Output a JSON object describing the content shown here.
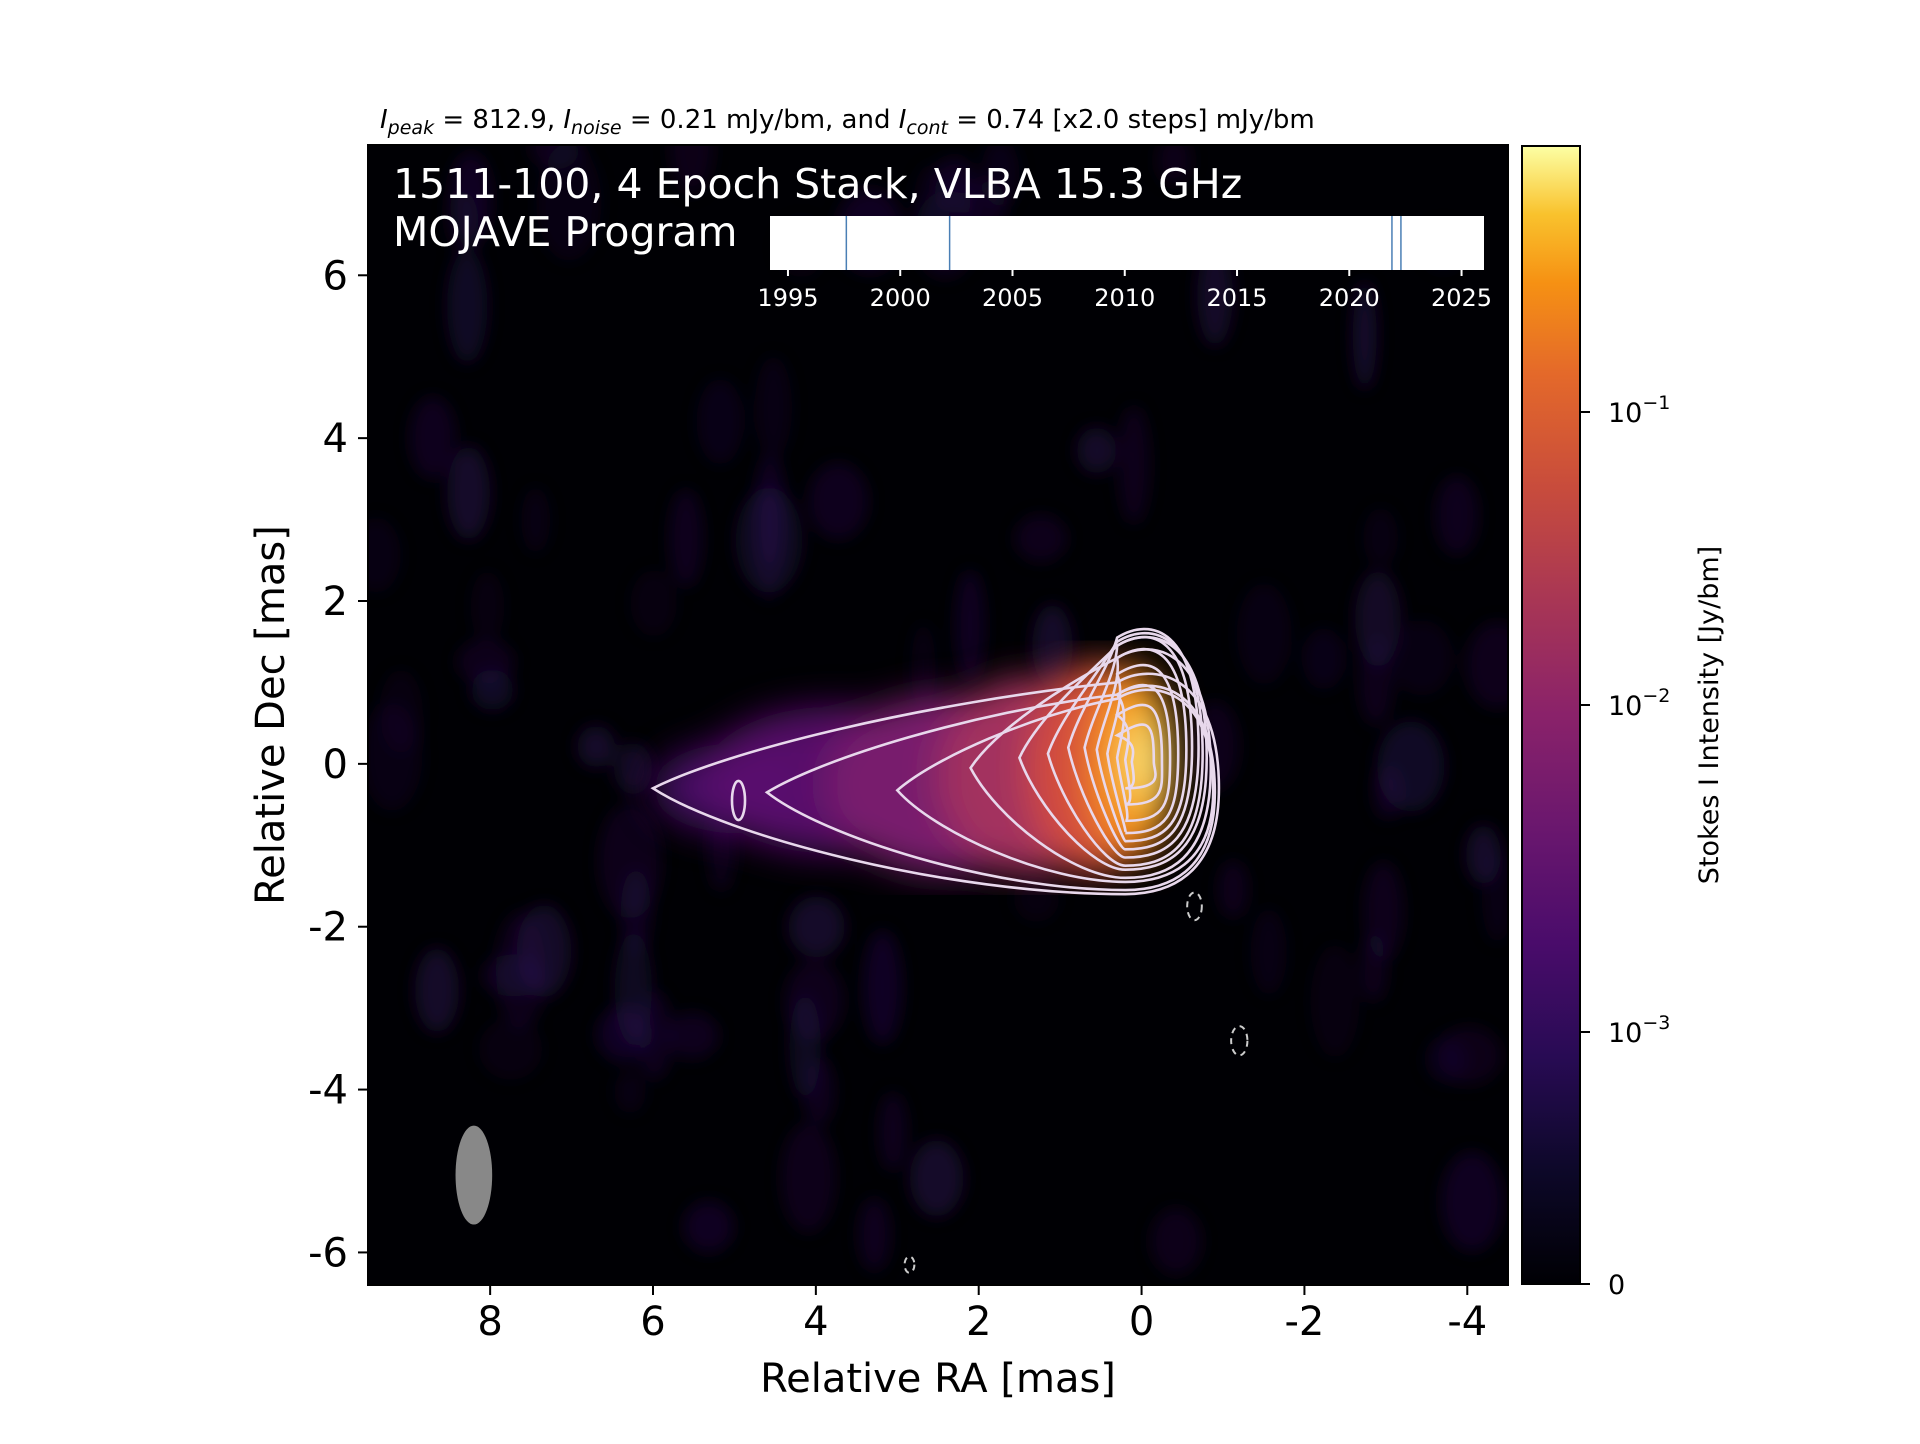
{
  "chart_data": {
    "type": "heatmap",
    "header": {
      "peak_sym": "I",
      "peak_sub": "peak",
      "peak_text": " = 812.9, ",
      "noise_sym": "I",
      "noise_sub": "noise",
      "noise_text": " = 0.21 mJy/bm, and ",
      "cont_sym": "I",
      "cont_sub": "cont",
      "cont_text": " = 0.74 [x2.0 steps] mJy/bm"
    },
    "overlay_title_line1": "1511-100, 4 Epoch Stack, VLBA 15.3 GHz",
    "overlay_title_line2": "MOJAVE Program",
    "xlabel": "Relative RA [mas]",
    "ylabel": "Relative Dec [mas]",
    "xlim": [
      9.5,
      -4.5
    ],
    "ylim": [
      -6.4,
      7.6
    ],
    "x_ticks": [
      8,
      6,
      4,
      2,
      0,
      -2,
      -4
    ],
    "y_ticks": [
      6,
      4,
      2,
      0,
      -2,
      -4,
      -6
    ],
    "x_tick_labels": [
      "8",
      "6",
      "4",
      "2",
      "0",
      "-2",
      "-4"
    ],
    "y_tick_labels": [
      "6",
      "4",
      "2",
      "0",
      "-2",
      "-4",
      "-6"
    ],
    "colorscale": "inferno",
    "colorbar": {
      "label": "Stokes I Intensity [Jy/bm]",
      "scale": "log",
      "ticks": [
        {
          "base": "10",
          "exp": "−1",
          "value": 0.1
        },
        {
          "base": "10",
          "exp": "−2",
          "value": 0.01
        },
        {
          "base": "10",
          "exp": "−3",
          "value": 0.001
        },
        {
          "base": "0",
          "exp": "",
          "value": 0
        }
      ]
    },
    "beam": {
      "x": 8.2,
      "y": -5.05,
      "major_mas": 1.35,
      "minor_mas": 0.5,
      "pa_deg": 0,
      "color": "#888888"
    },
    "epoch_inset": {
      "ticks": [
        1995,
        2000,
        2005,
        2010,
        2015,
        2020,
        2025
      ],
      "tick_labels": [
        "1995",
        "2000",
        "2005",
        "2010",
        "2015",
        "2020",
        "2025"
      ],
      "xlim": [
        1994.2,
        2026.0
      ],
      "epochs": [
        1997.6,
        2002.2,
        2021.9,
        2022.3
      ],
      "line_color": "#4a7fb5"
    },
    "contours": {
      "peak_mjy": 812.9,
      "lowest_mjy": 0.74,
      "step_factor": 2.0,
      "color": "#e8d8ec"
    }
  }
}
